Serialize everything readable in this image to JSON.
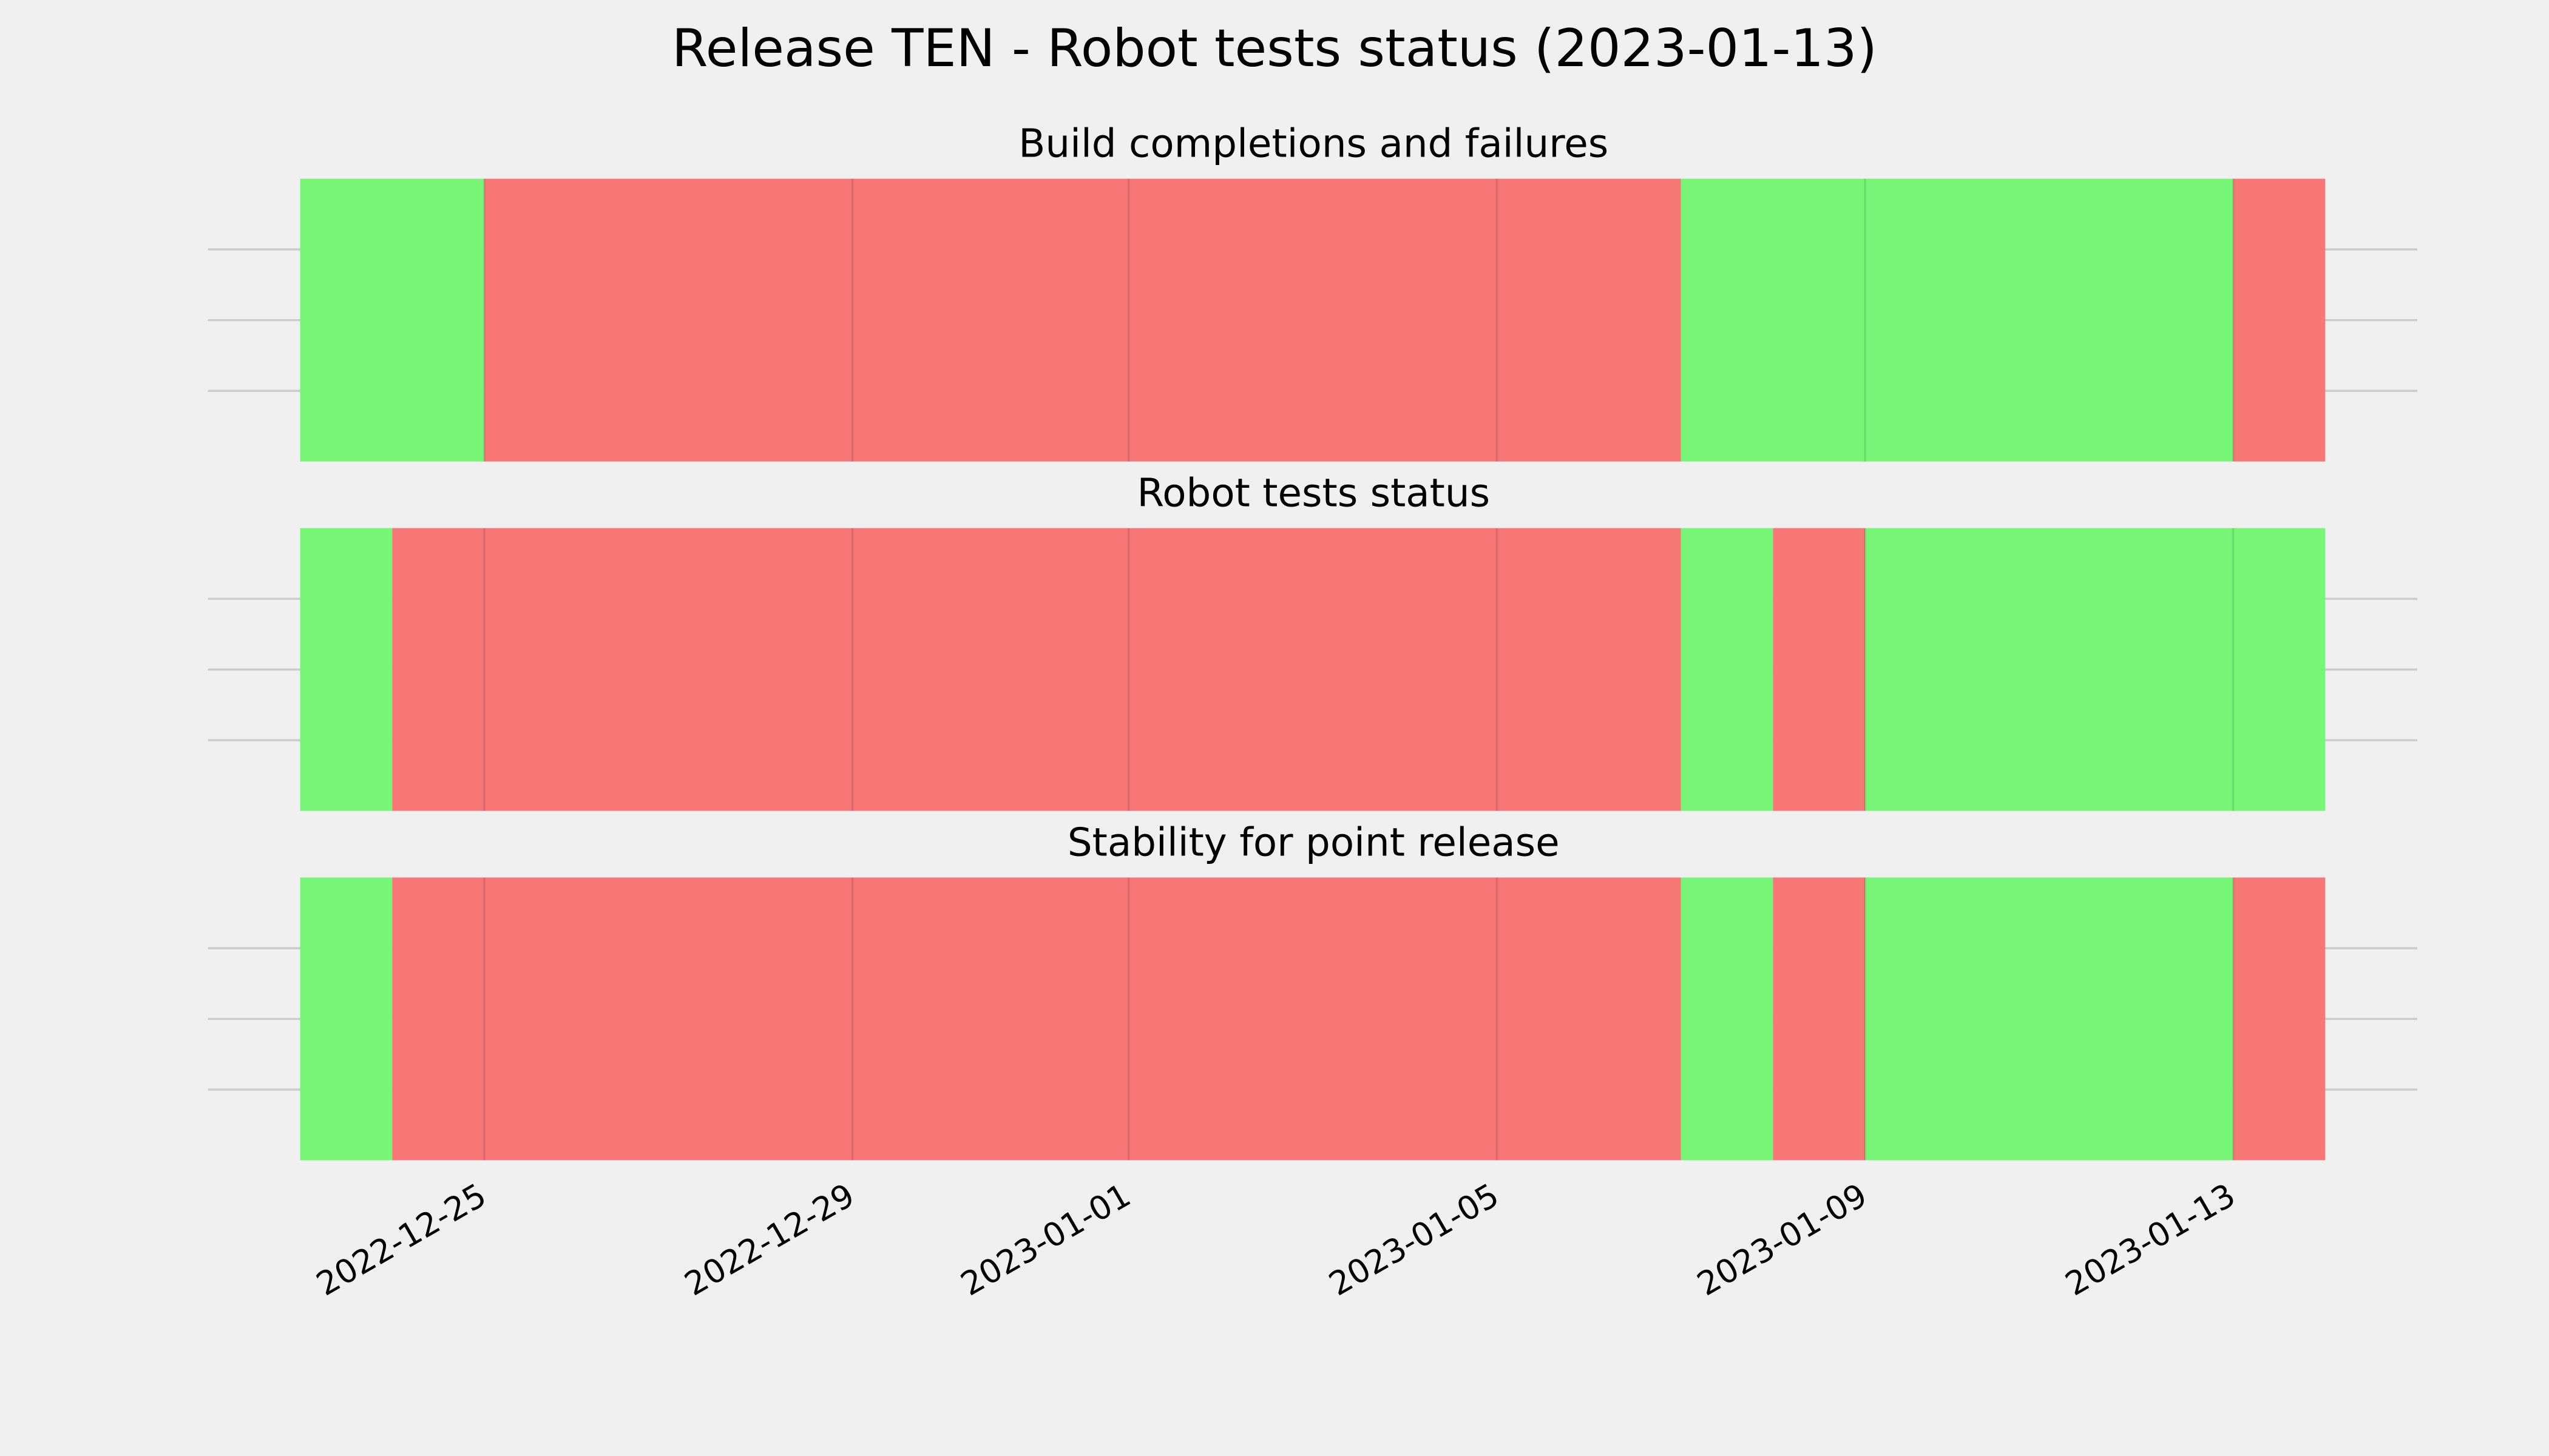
{
  "chart_data": {
    "type": "timeline",
    "title": "Release TEN - Robot tests status (2023-01-13)",
    "xlim": [
      "2022-12-22",
      "2023-01-15"
    ],
    "xticks": [
      "2022-12-25",
      "2022-12-29",
      "2023-01-01",
      "2023-01-05",
      "2023-01-09",
      "2023-01-13"
    ],
    "grid": true,
    "panels": [
      {
        "title": "Build completions and failures",
        "spans": [
          {
            "start": "2022-12-23",
            "end": "2022-12-25",
            "color": "#77f577"
          },
          {
            "start": "2022-12-25",
            "end": "2023-01-07",
            "color": "#f77777"
          },
          {
            "start": "2023-01-07",
            "end": "2023-01-13",
            "color": "#77f577"
          },
          {
            "start": "2023-01-13",
            "end": "2023-01-14",
            "color": "#f77777"
          }
        ]
      },
      {
        "title": "Robot tests status",
        "spans": [
          {
            "start": "2022-12-23",
            "end": "2022-12-24",
            "color": "#77f577"
          },
          {
            "start": "2022-12-24",
            "end": "2023-01-07",
            "color": "#f77777"
          },
          {
            "start": "2023-01-07",
            "end": "2023-01-08",
            "color": "#77f577"
          },
          {
            "start": "2023-01-08",
            "end": "2023-01-09",
            "color": "#f77777"
          },
          {
            "start": "2023-01-09",
            "end": "2023-01-14",
            "color": "#77f577"
          }
        ]
      },
      {
        "title": "Stability for point release",
        "spans": [
          {
            "start": "2022-12-23",
            "end": "2022-12-24",
            "color": "#77f577"
          },
          {
            "start": "2022-12-24",
            "end": "2023-01-07",
            "color": "#f77777"
          },
          {
            "start": "2023-01-07",
            "end": "2023-01-08",
            "color": "#77f577"
          },
          {
            "start": "2023-01-08",
            "end": "2023-01-09",
            "color": "#f77777"
          },
          {
            "start": "2023-01-09",
            "end": "2023-01-13",
            "color": "#77f577"
          },
          {
            "start": "2023-01-13",
            "end": "2023-01-14",
            "color": "#f77777"
          }
        ]
      }
    ]
  }
}
